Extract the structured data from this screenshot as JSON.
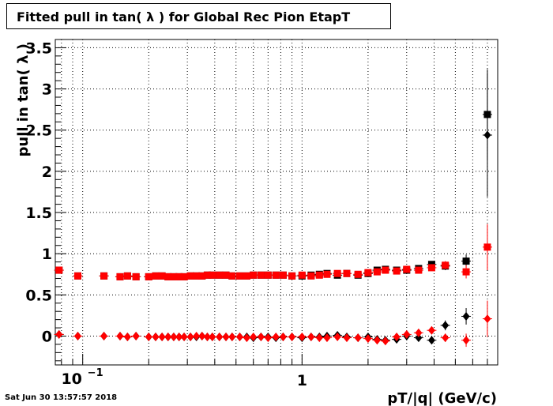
{
  "chart_data": {
    "type": "scatter",
    "title": "Fitted pull in tan( λ ) for Global Rec Pion EtapT",
    "xlabel": "pT/|q| (GeV/c)",
    "ylabel": "pull in tan( λ )",
    "xscale": "log",
    "xlim": [
      0.075,
      7.8
    ],
    "ylim": [
      -0.35,
      3.6
    ],
    "yticks": [
      "0",
      "0.5",
      "1",
      "1.5",
      "2",
      "2.5",
      "3",
      "3.5"
    ],
    "xticks": [
      {
        "value": 0.1,
        "base": "10",
        "exp": "−1"
      },
      {
        "value": 1,
        "label": "1"
      }
    ],
    "grid": true,
    "series": [
      {
        "color": "#000000",
        "marker": "square",
        "points": [
          [
            0.078,
            0.8,
            0.0
          ],
          [
            0.095,
            0.73,
            0.0
          ],
          [
            0.125,
            0.73,
            0.0
          ],
          [
            0.148,
            0.72,
            0.0
          ],
          [
            0.16,
            0.73,
            0.0
          ],
          [
            0.175,
            0.72,
            0.0
          ],
          [
            0.2,
            0.72,
            0.0
          ],
          [
            0.215,
            0.73,
            0.0
          ],
          [
            0.23,
            0.73,
            0.0
          ],
          [
            0.245,
            0.72,
            0.0
          ],
          [
            0.26,
            0.72,
            0.0
          ],
          [
            0.275,
            0.72,
            0.0
          ],
          [
            0.29,
            0.72,
            0.0
          ],
          [
            0.31,
            0.73,
            0.0
          ],
          [
            0.33,
            0.73,
            0.0
          ],
          [
            0.35,
            0.73,
            0.0
          ],
          [
            0.37,
            0.74,
            0.0
          ],
          [
            0.39,
            0.74,
            0.0
          ],
          [
            0.42,
            0.74,
            0.0
          ],
          [
            0.45,
            0.74,
            0.0
          ],
          [
            0.48,
            0.73,
            0.0
          ],
          [
            0.52,
            0.73,
            0.0
          ],
          [
            0.56,
            0.73,
            0.0
          ],
          [
            0.6,
            0.74,
            0.0
          ],
          [
            0.65,
            0.74,
            0.0
          ],
          [
            0.7,
            0.74,
            0.0
          ],
          [
            0.76,
            0.74,
            0.0
          ],
          [
            0.82,
            0.74,
            0.0
          ],
          [
            0.9,
            0.73,
            0.0
          ],
          [
            1.0,
            0.73,
            0.01
          ],
          [
            1.1,
            0.74,
            0.01
          ],
          [
            1.2,
            0.75,
            0.01
          ],
          [
            1.3,
            0.76,
            0.01
          ],
          [
            1.45,
            0.74,
            0.01
          ],
          [
            1.6,
            0.76,
            0.01
          ],
          [
            1.8,
            0.74,
            0.01
          ],
          [
            2.0,
            0.76,
            0.01
          ],
          [
            2.2,
            0.8,
            0.01
          ],
          [
            2.4,
            0.81,
            0.02
          ],
          [
            2.7,
            0.8,
            0.02
          ],
          [
            3.0,
            0.8,
            0.02
          ],
          [
            3.4,
            0.82,
            0.03
          ],
          [
            3.9,
            0.87,
            0.04
          ],
          [
            4.5,
            0.85,
            0.05
          ],
          [
            5.6,
            0.91,
            0.08
          ],
          [
            7.0,
            2.69,
            0.55
          ]
        ]
      },
      {
        "color": "#ff0000",
        "marker": "square",
        "points": [
          [
            0.078,
            0.8,
            0.0
          ],
          [
            0.095,
            0.73,
            0.0
          ],
          [
            0.125,
            0.73,
            0.0
          ],
          [
            0.148,
            0.72,
            0.0
          ],
          [
            0.16,
            0.73,
            0.0
          ],
          [
            0.175,
            0.72,
            0.0
          ],
          [
            0.2,
            0.72,
            0.0
          ],
          [
            0.215,
            0.73,
            0.0
          ],
          [
            0.23,
            0.73,
            0.0
          ],
          [
            0.245,
            0.72,
            0.0
          ],
          [
            0.26,
            0.72,
            0.0
          ],
          [
            0.275,
            0.72,
            0.0
          ],
          [
            0.29,
            0.72,
            0.0
          ],
          [
            0.31,
            0.73,
            0.0
          ],
          [
            0.33,
            0.73,
            0.0
          ],
          [
            0.35,
            0.73,
            0.0
          ],
          [
            0.37,
            0.74,
            0.0
          ],
          [
            0.39,
            0.74,
            0.0
          ],
          [
            0.42,
            0.74,
            0.0
          ],
          [
            0.45,
            0.74,
            0.0
          ],
          [
            0.48,
            0.73,
            0.0
          ],
          [
            0.52,
            0.73,
            0.0
          ],
          [
            0.56,
            0.73,
            0.0
          ],
          [
            0.6,
            0.74,
            0.0
          ],
          [
            0.65,
            0.74,
            0.0
          ],
          [
            0.7,
            0.74,
            0.0
          ],
          [
            0.76,
            0.74,
            0.0
          ],
          [
            0.82,
            0.74,
            0.0
          ],
          [
            0.9,
            0.73,
            0.0
          ],
          [
            1.0,
            0.74,
            0.01
          ],
          [
            1.1,
            0.73,
            0.01
          ],
          [
            1.2,
            0.74,
            0.01
          ],
          [
            1.3,
            0.75,
            0.01
          ],
          [
            1.45,
            0.76,
            0.01
          ],
          [
            1.6,
            0.76,
            0.01
          ],
          [
            1.8,
            0.75,
            0.01
          ],
          [
            2.0,
            0.77,
            0.01
          ],
          [
            2.2,
            0.78,
            0.01
          ],
          [
            2.4,
            0.8,
            0.02
          ],
          [
            2.7,
            0.79,
            0.02
          ],
          [
            3.0,
            0.81,
            0.02
          ],
          [
            3.4,
            0.8,
            0.03
          ],
          [
            3.9,
            0.83,
            0.04
          ],
          [
            4.5,
            0.86,
            0.05
          ],
          [
            5.6,
            0.78,
            0.08
          ],
          [
            7.0,
            1.08,
            0.28
          ]
        ]
      },
      {
        "color": "#000000",
        "marker": "diamond",
        "points": [
          [
            0.078,
            0.02,
            0.0
          ],
          [
            0.095,
            0.0,
            0.0
          ],
          [
            0.125,
            0.0,
            0.0
          ],
          [
            0.148,
            0.0,
            0.0
          ],
          [
            0.16,
            -0.01,
            0.0
          ],
          [
            0.175,
            0.0,
            0.0
          ],
          [
            0.2,
            -0.01,
            0.0
          ],
          [
            0.215,
            -0.01,
            0.0
          ],
          [
            0.23,
            -0.01,
            0.0
          ],
          [
            0.245,
            -0.01,
            0.0
          ],
          [
            0.26,
            -0.01,
            0.0
          ],
          [
            0.275,
            -0.01,
            0.0
          ],
          [
            0.29,
            -0.01,
            0.0
          ],
          [
            0.31,
            -0.01,
            0.0
          ],
          [
            0.33,
            -0.01,
            0.0
          ],
          [
            0.35,
            0.0,
            0.0
          ],
          [
            0.37,
            -0.01,
            0.0
          ],
          [
            0.39,
            -0.01,
            0.0
          ],
          [
            0.42,
            -0.01,
            0.0
          ],
          [
            0.45,
            -0.01,
            0.0
          ],
          [
            0.48,
            -0.01,
            0.0
          ],
          [
            0.52,
            -0.01,
            0.0
          ],
          [
            0.56,
            -0.01,
            0.0
          ],
          [
            0.6,
            -0.02,
            0.0
          ],
          [
            0.65,
            -0.01,
            0.0
          ],
          [
            0.7,
            -0.01,
            0.0
          ],
          [
            0.76,
            -0.02,
            0.0
          ],
          [
            0.82,
            -0.01,
            0.0
          ],
          [
            0.9,
            -0.01,
            0.0
          ],
          [
            1.0,
            -0.02,
            0.01
          ],
          [
            1.1,
            -0.01,
            0.01
          ],
          [
            1.2,
            -0.01,
            0.01
          ],
          [
            1.3,
            0.0,
            0.01
          ],
          [
            1.45,
            0.01,
            0.01
          ],
          [
            1.6,
            -0.01,
            0.01
          ],
          [
            1.8,
            -0.02,
            0.01
          ],
          [
            2.0,
            -0.01,
            0.01
          ],
          [
            2.2,
            -0.04,
            0.01
          ],
          [
            2.4,
            -0.05,
            0.02
          ],
          [
            2.7,
            -0.04,
            0.02
          ],
          [
            3.0,
            0.0,
            0.02
          ],
          [
            3.4,
            -0.02,
            0.03
          ],
          [
            3.9,
            -0.05,
            0.04
          ],
          [
            4.5,
            0.13,
            0.06
          ],
          [
            5.6,
            0.24,
            0.1
          ],
          [
            7.0,
            2.44,
            0.75
          ]
        ]
      },
      {
        "color": "#ff0000",
        "marker": "diamond",
        "points": [
          [
            0.078,
            0.02,
            0.0
          ],
          [
            0.095,
            0.0,
            0.0
          ],
          [
            0.125,
            0.0,
            0.0
          ],
          [
            0.148,
            0.0,
            0.0
          ],
          [
            0.16,
            -0.01,
            0.0
          ],
          [
            0.175,
            0.0,
            0.0
          ],
          [
            0.2,
            -0.01,
            0.0
          ],
          [
            0.215,
            -0.01,
            0.0
          ],
          [
            0.23,
            -0.01,
            0.0
          ],
          [
            0.245,
            -0.01,
            0.0
          ],
          [
            0.26,
            -0.01,
            0.0
          ],
          [
            0.275,
            -0.01,
            0.0
          ],
          [
            0.29,
            -0.01,
            0.0
          ],
          [
            0.31,
            -0.01,
            0.0
          ],
          [
            0.33,
            0.0,
            0.0
          ],
          [
            0.35,
            0.0,
            0.0
          ],
          [
            0.37,
            -0.01,
            0.0
          ],
          [
            0.39,
            -0.01,
            0.0
          ],
          [
            0.42,
            -0.01,
            0.0
          ],
          [
            0.45,
            -0.01,
            0.0
          ],
          [
            0.48,
            -0.01,
            0.0
          ],
          [
            0.52,
            -0.01,
            0.0
          ],
          [
            0.56,
            -0.02,
            0.0
          ],
          [
            0.6,
            -0.01,
            0.0
          ],
          [
            0.65,
            -0.01,
            0.0
          ],
          [
            0.7,
            -0.02,
            0.0
          ],
          [
            0.76,
            -0.01,
            0.0
          ],
          [
            0.82,
            -0.01,
            0.0
          ],
          [
            0.9,
            -0.01,
            0.0
          ],
          [
            1.0,
            -0.01,
            0.01
          ],
          [
            1.1,
            -0.01,
            0.01
          ],
          [
            1.2,
            -0.02,
            0.01
          ],
          [
            1.3,
            -0.02,
            0.01
          ],
          [
            1.45,
            -0.01,
            0.01
          ],
          [
            1.6,
            -0.02,
            0.01
          ],
          [
            1.8,
            -0.02,
            0.01
          ],
          [
            2.0,
            -0.03,
            0.01
          ],
          [
            2.2,
            -0.05,
            0.01
          ],
          [
            2.4,
            -0.06,
            0.02
          ],
          [
            2.7,
            -0.01,
            0.02
          ],
          [
            3.0,
            0.02,
            0.02
          ],
          [
            3.4,
            0.04,
            0.03
          ],
          [
            3.9,
            0.07,
            0.04
          ],
          [
            4.5,
            -0.02,
            0.05
          ],
          [
            5.6,
            -0.05,
            0.08
          ],
          [
            7.0,
            0.21,
            0.22
          ]
        ]
      }
    ]
  },
  "footer": {
    "timestamp": "Sat Jun 30 13:57:57 2018"
  }
}
